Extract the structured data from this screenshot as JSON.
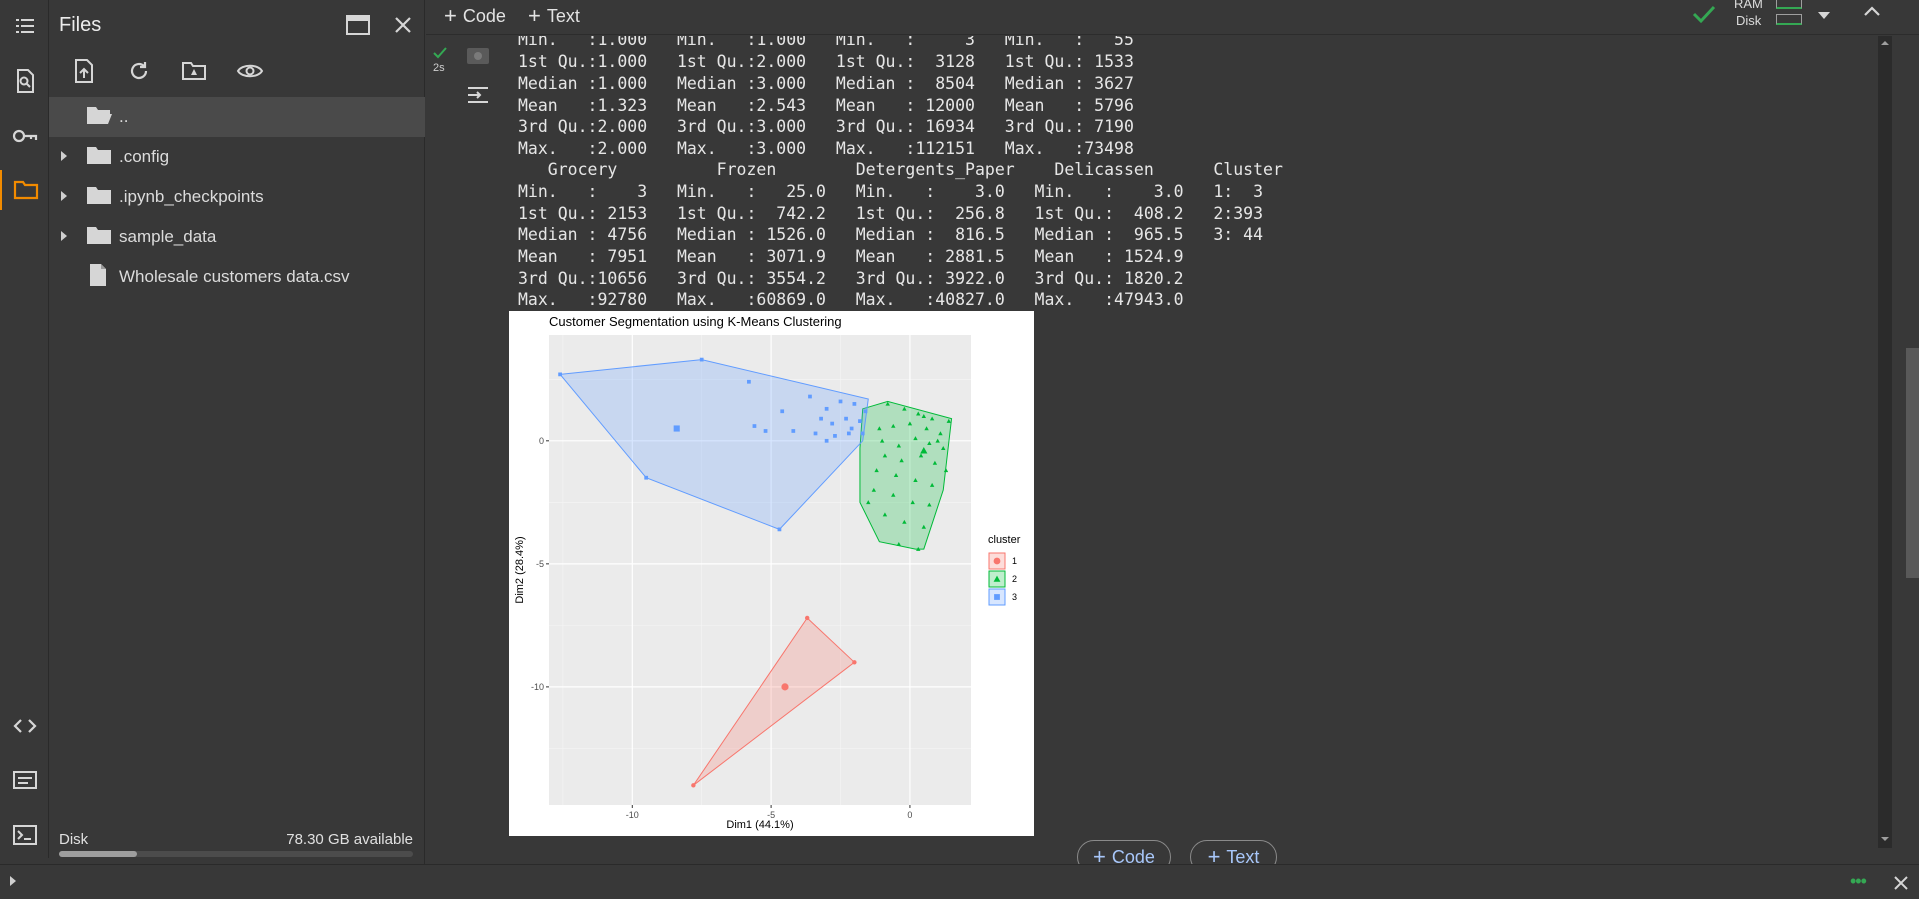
{
  "files_panel": {
    "title": "Files",
    "tree": [
      {
        "label": "..",
        "type": "folder-open"
      },
      {
        "label": ".config",
        "type": "folder"
      },
      {
        "label": ".ipynb_checkpoints",
        "type": "folder"
      },
      {
        "label": "sample_data",
        "type": "folder"
      },
      {
        "label": "Wholesale customers data.csv",
        "type": "file"
      }
    ],
    "disk_label": "Disk",
    "disk_available": "78.30 GB available",
    "disk_usage_fraction": 0.22
  },
  "toolbar": {
    "code_label": "Code",
    "text_label": "Text",
    "ram_label": "RAM",
    "disk_label": "Disk"
  },
  "cell": {
    "exec_time": "2s",
    "output_lines": [
      "Min.   :1.000   Min.   :1.000   Min.   :     3   Min.   :   55",
      "1st Qu.:1.000   1st Qu.:2.000   1st Qu.:  3128   1st Qu.: 1533",
      "Median :1.000   Median :3.000   Median :  8504   Median : 3627",
      "Mean   :1.323   Mean   :2.543   Mean   : 12000   Mean   : 5796",
      "3rd Qu.:2.000   3rd Qu.:3.000   3rd Qu.: 16934   3rd Qu.: 7190",
      "Max.   :2.000   Max.   :3.000   Max.   :112151   Max.   :73498",
      "   Grocery          Frozen        Detergents_Paper    Delicassen      Cluster",
      "Min.   :    3   Min.   :   25.0   Min.   :    3.0   Min.   :    3.0   1:  3",
      "1st Qu.: 2153   1st Qu.:  742.2   1st Qu.:  256.8   1st Qu.:  408.2   2:393",
      "Median : 4756   Median : 1526.0   Median :  816.5   Median :  965.5   3: 44",
      "Mean   : 7951   Mean   : 3071.9   Mean   : 2881.5   Mean   : 1524.9",
      "3rd Qu.:10656   3rd Qu.: 3554.2   3rd Qu.: 3922.0   3rd Qu.: 1820.2",
      "Max.   :92780   Max.   :60869.0   Max.   :40827.0   Max.   :47943.0"
    ]
  },
  "add_cell": {
    "code_label": "Code",
    "text_label": "Text"
  },
  "colors": {
    "cluster1": "#F8766D",
    "cluster2": "#00BA38",
    "cluster3": "#619CFF",
    "accent": "#f28b00",
    "link": "#a8c7fa"
  },
  "chart_data": {
    "type": "scatter",
    "title": "Customer Segmentation using K-Means Clustering",
    "xlabel": "Dim1 (44.1%)",
    "ylabel": "Dim2 (28.4%)",
    "xlim": [
      -13,
      2.2
    ],
    "ylim": [
      -14.8,
      4.3
    ],
    "x_ticks": [
      -10,
      -5,
      0
    ],
    "y_ticks": [
      0,
      -5,
      -10
    ],
    "grid": true,
    "legend_title": "cluster",
    "legend_position": "right",
    "series": [
      {
        "name": "1",
        "shape": "circle",
        "centroid": [
          -4.5,
          -10.0
        ],
        "points": [
          [
            -3.7,
            -7.2
          ],
          [
            -2.0,
            -9.0
          ],
          [
            -7.8,
            -14.0
          ]
        ],
        "hull": [
          [
            -3.7,
            -7.2
          ],
          [
            -2.0,
            -9.0
          ],
          [
            -7.8,
            -14.0
          ]
        ]
      },
      {
        "name": "2",
        "shape": "triangle",
        "centroid": [
          0.5,
          -0.4
        ],
        "points": [
          [
            -0.8,
            1.5
          ],
          [
            -0.2,
            1.3
          ],
          [
            0.3,
            1.1
          ],
          [
            0.8,
            0.9
          ],
          [
            1.4,
            0.8
          ],
          [
            -1.1,
            0.5
          ],
          [
            -0.6,
            0.6
          ],
          [
            0.0,
            0.7
          ],
          [
            0.6,
            0.5
          ],
          [
            1.1,
            0.3
          ],
          [
            -1.0,
            0.0
          ],
          [
            -0.4,
            -0.2
          ],
          [
            0.2,
            0.1
          ],
          [
            0.7,
            -0.1
          ],
          [
            1.2,
            -0.3
          ],
          [
            -0.9,
            -0.6
          ],
          [
            -0.3,
            -0.8
          ],
          [
            0.4,
            -0.6
          ],
          [
            0.9,
            -0.9
          ],
          [
            1.3,
            -1.2
          ],
          [
            -1.2,
            -1.2
          ],
          [
            -0.5,
            -1.4
          ],
          [
            0.2,
            -1.6
          ],
          [
            0.8,
            -1.8
          ],
          [
            -1.3,
            -2.0
          ],
          [
            -0.6,
            -2.2
          ],
          [
            0.1,
            -2.5
          ],
          [
            0.7,
            -2.6
          ],
          [
            -0.9,
            -3.0
          ],
          [
            -0.2,
            -3.3
          ],
          [
            0.5,
            -3.5
          ],
          [
            -0.4,
            -4.2
          ],
          [
            0.3,
            -4.4
          ],
          [
            -1.5,
            -2.5
          ],
          [
            1.0,
            0.0
          ],
          [
            0.5,
            1.0
          ]
        ],
        "hull": [
          [
            -1.7,
            1.3
          ],
          [
            -0.8,
            1.6
          ],
          [
            1.5,
            0.9
          ],
          [
            1.2,
            -2.0
          ],
          [
            0.5,
            -4.4
          ],
          [
            0.2,
            -4.4
          ],
          [
            -1.1,
            -4.1
          ],
          [
            -1.8,
            -2.5
          ],
          [
            -1.8,
            -0.3
          ]
        ]
      },
      {
        "name": "3",
        "shape": "square",
        "centroid": [
          -8.4,
          0.5
        ],
        "points": [
          [
            -12.6,
            2.7
          ],
          [
            -7.5,
            3.3
          ],
          [
            -5.8,
            2.4
          ],
          [
            -3.6,
            1.8
          ],
          [
            -3.0,
            1.3
          ],
          [
            -2.5,
            1.6
          ],
          [
            -2.0,
            1.5
          ],
          [
            -1.6,
            1.2
          ],
          [
            -4.6,
            1.2
          ],
          [
            -3.2,
            0.9
          ],
          [
            -2.8,
            0.7
          ],
          [
            -2.3,
            0.9
          ],
          [
            -1.8,
            0.8
          ],
          [
            -5.6,
            0.6
          ],
          [
            -5.2,
            0.4
          ],
          [
            -4.2,
            0.4
          ],
          [
            -3.4,
            0.3
          ],
          [
            -2.7,
            0.2
          ],
          [
            -9.5,
            -1.5
          ],
          [
            -4.7,
            -3.6
          ],
          [
            -2.1,
            0.5
          ],
          [
            -1.7,
            0.3
          ],
          [
            -3.0,
            0.0
          ],
          [
            -2.2,
            0.3
          ]
        ],
        "hull": [
          [
            -12.6,
            2.7
          ],
          [
            -7.5,
            3.3
          ],
          [
            -1.5,
            1.7
          ],
          [
            -1.7,
            0.0
          ],
          [
            -4.7,
            -3.6
          ],
          [
            -9.5,
            -1.5
          ]
        ]
      }
    ]
  }
}
